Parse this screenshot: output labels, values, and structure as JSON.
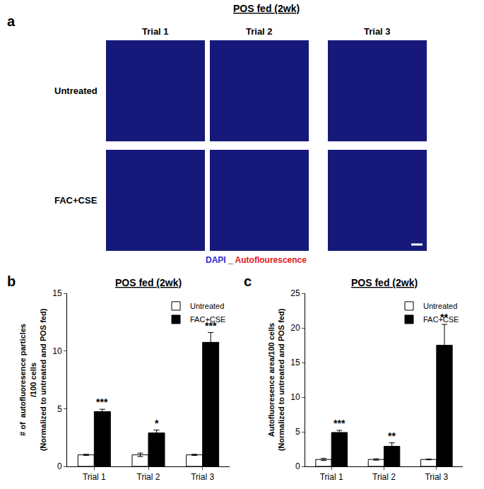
{
  "panel_a": {
    "label": "a",
    "title": "POS fed (2wk)",
    "columns": [
      "Trial 1",
      "Trial 2",
      "Trial 3"
    ],
    "rows": [
      "Untreated",
      "FAC+CSE"
    ],
    "caption": [
      {
        "text": "DAPI",
        "color": "#2b2bd6"
      },
      {
        "text": " _ ",
        "color": "#000000"
      },
      {
        "text": "Autoflourescence",
        "color": "#e0201b"
      }
    ]
  },
  "chart_data": [
    {
      "label": "b",
      "type": "bar",
      "title": "POS fed (2wk)",
      "y_label": [
        "# of  autofluoresence particles",
        "/100 cells",
        "(Normalized to untreated and POS fed)"
      ],
      "categories": [
        "Trial 1",
        "Trial 2",
        "Trial 3"
      ],
      "series": [
        {
          "name": "Untreated",
          "color": "#ffffff",
          "values": [
            1,
            1,
            1
          ],
          "errors": [
            0.05,
            0.15,
            0.05
          ]
        },
        {
          "name": "FAC+CSE",
          "color": "#000000",
          "values": [
            4.75,
            2.9,
            10.75
          ],
          "errors": [
            0.2,
            0.25,
            0.85
          ],
          "significance": [
            "***",
            "*",
            "***"
          ]
        }
      ],
      "ylim": [
        0,
        15
      ],
      "yticks": [
        0,
        5,
        10,
        15
      ],
      "grid": false,
      "legend": "upper right"
    },
    {
      "label": "c",
      "type": "bar",
      "title": "POS fed (2wk)",
      "y_label": [
        "Autofluoresence area/100 cells",
        "(Normalized to untreated and POS fed)"
      ],
      "categories": [
        "Trial 1",
        "Trial 2",
        "Trial 3"
      ],
      "series": [
        {
          "name": "Untreated",
          "color": "#ffffff",
          "values": [
            1,
            1,
            1
          ],
          "errors": [
            0.15,
            0.1,
            0.05
          ]
        },
        {
          "name": "FAC+CSE",
          "color": "#000000",
          "values": [
            4.9,
            2.9,
            17.5
          ],
          "errors": [
            0.3,
            0.5,
            3.0
          ],
          "significance": [
            "***",
            "**",
            "**"
          ]
        }
      ],
      "ylim": [
        0,
        25
      ],
      "yticks": [
        0,
        5,
        10,
        15,
        20,
        25
      ],
      "grid": false,
      "legend": "upper right"
    }
  ]
}
